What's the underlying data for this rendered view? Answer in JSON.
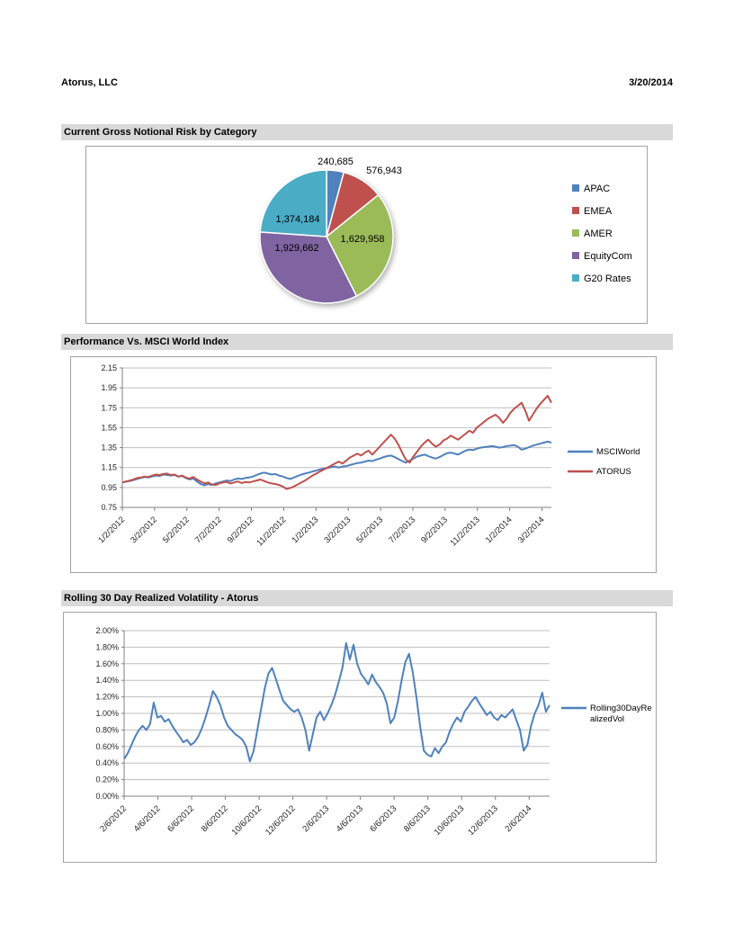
{
  "header": {
    "company": "Atorus, LLC",
    "date": "3/20/2014"
  },
  "chart_data": [
    {
      "type": "pie",
      "title": "Current Gross Notional Risk by Category",
      "categories": [
        "APAC",
        "EMEA",
        "AMER",
        "EquityCom",
        "G20 Rates"
      ],
      "values": [
        240685,
        576943,
        1629958,
        1929662,
        1374184
      ],
      "labels": [
        "240,685",
        "576,943",
        "1,629,958",
        "1,929,662",
        "1,374,184"
      ],
      "colors": [
        "#4F81BD",
        "#C0504D",
        "#9BBB59",
        "#8064A2",
        "#4BACC6"
      ],
      "legend_position": "right",
      "start_angle_deg": 0,
      "direction": "clockwise"
    },
    {
      "type": "line",
      "title": "Performance Vs. MSCI World Index",
      "ylim": [
        0.75,
        2.15
      ],
      "ystep": 0.2,
      "y_format": "fixed2",
      "grid": true,
      "legend_position": "right",
      "x_tick_labels": [
        "1/2/2012",
        "3/2/2012",
        "5/2/2012",
        "7/2/2012",
        "9/2/2012",
        "11/2/2012",
        "1/2/2013",
        "3/2/2013",
        "5/2/2013",
        "7/2/2013",
        "9/2/2013",
        "11/2/2013",
        "1/2/2014",
        "3/2/2014"
      ],
      "series": [
        {
          "name": "MSCIWorld",
          "color": "#4F81BD",
          "values": [
            1.0,
            1.008,
            1.015,
            1.025,
            1.035,
            1.045,
            1.055,
            1.05,
            1.06,
            1.07,
            1.065,
            1.08,
            1.075,
            1.07,
            1.075,
            1.06,
            1.065,
            1.045,
            1.03,
            1.04,
            1.01,
            0.985,
            0.97,
            0.985,
            0.975,
            0.99,
            1.0,
            1.01,
            1.02,
            1.015,
            1.03,
            1.04,
            1.035,
            1.045,
            1.05,
            1.06,
            1.075,
            1.09,
            1.1,
            1.09,
            1.08,
            1.085,
            1.07,
            1.06,
            1.045,
            1.035,
            1.05,
            1.065,
            1.08,
            1.09,
            1.1,
            1.11,
            1.12,
            1.13,
            1.14,
            1.145,
            1.155,
            1.16,
            1.15,
            1.16,
            1.165,
            1.175,
            1.185,
            1.195,
            1.2,
            1.21,
            1.22,
            1.215,
            1.23,
            1.24,
            1.255,
            1.265,
            1.27,
            1.255,
            1.235,
            1.215,
            1.2,
            1.22,
            1.24,
            1.26,
            1.27,
            1.28,
            1.265,
            1.25,
            1.24,
            1.255,
            1.275,
            1.295,
            1.3,
            1.29,
            1.28,
            1.3,
            1.32,
            1.33,
            1.325,
            1.34,
            1.35,
            1.355,
            1.36,
            1.365,
            1.36,
            1.35,
            1.355,
            1.365,
            1.37,
            1.375,
            1.36,
            1.33,
            1.34,
            1.355,
            1.37,
            1.38,
            1.39,
            1.4,
            1.41,
            1.4
          ]
        },
        {
          "name": "ATORUS",
          "color": "#C0504D",
          "values": [
            1.0,
            1.01,
            1.02,
            1.03,
            1.045,
            1.05,
            1.06,
            1.055,
            1.07,
            1.08,
            1.075,
            1.085,
            1.09,
            1.075,
            1.08,
            1.06,
            1.07,
            1.05,
            1.04,
            1.055,
            1.03,
            1.01,
            0.99,
            1.0,
            0.98,
            0.975,
            0.99,
            1.0,
            1.005,
            0.99,
            1.0,
            1.01,
            0.995,
            1.005,
            1.0,
            1.01,
            1.02,
            1.03,
            1.015,
            1.0,
            0.99,
            0.985,
            0.975,
            0.96,
            0.935,
            0.945,
            0.96,
            0.98,
            1.0,
            1.02,
            1.045,
            1.07,
            1.09,
            1.11,
            1.13,
            1.15,
            1.17,
            1.19,
            1.21,
            1.19,
            1.22,
            1.25,
            1.27,
            1.29,
            1.27,
            1.3,
            1.32,
            1.28,
            1.32,
            1.36,
            1.4,
            1.44,
            1.48,
            1.44,
            1.38,
            1.3,
            1.23,
            1.2,
            1.26,
            1.31,
            1.36,
            1.4,
            1.43,
            1.39,
            1.36,
            1.38,
            1.42,
            1.44,
            1.47,
            1.45,
            1.43,
            1.46,
            1.49,
            1.52,
            1.5,
            1.55,
            1.58,
            1.61,
            1.64,
            1.66,
            1.68,
            1.65,
            1.6,
            1.64,
            1.7,
            1.74,
            1.77,
            1.8,
            1.72,
            1.62,
            1.68,
            1.74,
            1.79,
            1.83,
            1.87,
            1.8
          ]
        }
      ]
    },
    {
      "type": "line",
      "title": "Rolling 30 Day Realized Volatility - Atorus",
      "ylim": [
        0,
        2.0
      ],
      "ystep": 0.2,
      "y_format": "percent2",
      "grid": true,
      "legend_position": "right",
      "x_tick_labels": [
        "2/6/2012",
        "4/6/2012",
        "6/6/2012",
        "8/6/2012",
        "10/6/2012",
        "12/6/2012",
        "2/6/2013",
        "4/6/2013",
        "6/6/2013",
        "8/6/2013",
        "10/6/2013",
        "12/6/2013",
        "2/6/2014"
      ],
      "series": [
        {
          "name": "Rolling30DayRealizedVol",
          "legend_lines": [
            "Rolling30DayRe",
            "alizedVol"
          ],
          "color": "#4F81BD",
          "values": [
            0.45,
            0.52,
            0.62,
            0.72,
            0.8,
            0.85,
            0.8,
            0.87,
            1.13,
            0.95,
            0.97,
            0.9,
            0.93,
            0.85,
            0.78,
            0.72,
            0.65,
            0.68,
            0.62,
            0.65,
            0.72,
            0.82,
            0.95,
            1.1,
            1.27,
            1.2,
            1.1,
            0.95,
            0.85,
            0.8,
            0.75,
            0.72,
            0.68,
            0.6,
            0.42,
            0.55,
            0.8,
            1.05,
            1.3,
            1.48,
            1.55,
            1.42,
            1.28,
            1.15,
            1.1,
            1.05,
            1.02,
            1.05,
            0.95,
            0.8,
            0.55,
            0.75,
            0.95,
            1.02,
            0.92,
            1.0,
            1.1,
            1.22,
            1.38,
            1.55,
            1.85,
            1.65,
            1.83,
            1.6,
            1.48,
            1.42,
            1.35,
            1.47,
            1.38,
            1.32,
            1.25,
            1.12,
            0.88,
            0.95,
            1.15,
            1.4,
            1.62,
            1.72,
            1.5,
            1.2,
            0.85,
            0.55,
            0.5,
            0.48,
            0.58,
            0.52,
            0.6,
            0.65,
            0.78,
            0.88,
            0.95,
            0.9,
            1.02,
            1.08,
            1.15,
            1.2,
            1.12,
            1.05,
            0.98,
            1.02,
            0.95,
            0.92,
            0.98,
            0.95,
            1.0,
            1.05,
            0.92,
            0.8,
            0.55,
            0.62,
            0.85,
            1.0,
            1.1,
            1.25,
            1.02,
            1.1
          ]
        }
      ]
    }
  ]
}
